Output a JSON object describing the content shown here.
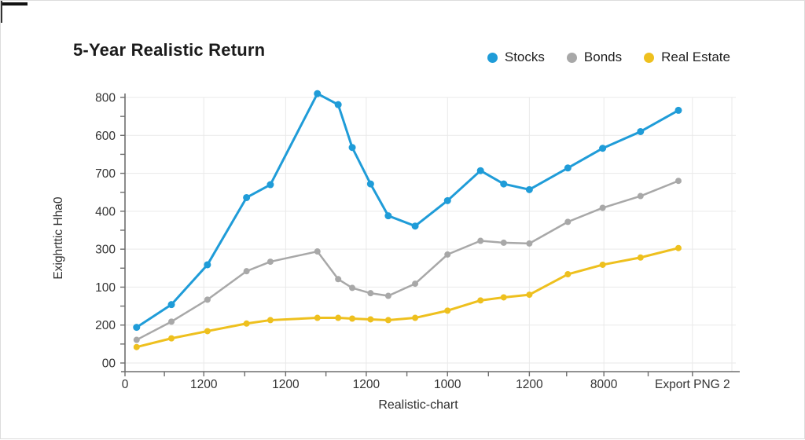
{
  "window": {
    "background": "#ffffff",
    "border_color": "#dcdcdc",
    "corner_mark_color": "#111111"
  },
  "header": {
    "title": "5-Year Realistic Return"
  },
  "legend": {
    "items": [
      {
        "label": "Stocks",
        "color": "#1f9cd8"
      },
      {
        "label": "Bonds",
        "color": "#a8a8a8"
      },
      {
        "label": "Real Estate",
        "color": "#eec01e"
      }
    ]
  },
  "chart_data": {
    "type": "line",
    "title": "5-Year Realistic Return",
    "xlabel": "Realistic-chart",
    "ylabel": "Exighrttic Hha0",
    "grid": true,
    "legend_position": "top-right",
    "axis_color": "#6e6e6e",
    "gridline_color": "#e9e9e9",
    "tick_label_color": "#333333",
    "x_axis": {
      "range": [
        0,
        100
      ],
      "ticks": [
        {
          "pos": 0,
          "label": "0"
        },
        {
          "pos": 12.9,
          "label": "1200"
        },
        {
          "pos": 26.3,
          "label": "1200"
        },
        {
          "pos": 39.5,
          "label": "1200"
        },
        {
          "pos": 52.8,
          "label": "1000"
        },
        {
          "pos": 66.2,
          "label": "1200"
        },
        {
          "pos": 78.4,
          "label": "8000"
        },
        {
          "pos": 92.9,
          "label": "Export PNG 2"
        }
      ]
    },
    "y_axis": {
      "range": [
        0,
        700
      ],
      "tick_step": 100,
      "tick_labels_bottom_to_top": [
        "00",
        "200",
        "100",
        "300",
        "400",
        "700",
        "600",
        "800"
      ]
    },
    "x": [
      1.9,
      7.6,
      13.5,
      19.9,
      23.8,
      31.5,
      34.9,
      37.2,
      40.2,
      43.1,
      47.5,
      52.8,
      58.2,
      62.0,
      66.2,
      72.5,
      78.2,
      84.4,
      90.6
    ],
    "series": [
      {
        "name": "Stocks",
        "color": "#1f9cd8",
        "line_width": 3,
        "marker_radius": 4.5,
        "values": [
          94,
          154,
          259,
          436,
          470,
          710,
          681,
          568,
          472,
          388,
          361,
          428,
          507,
          472,
          457,
          514,
          566,
          610,
          666
        ]
      },
      {
        "name": "Bonds",
        "color": "#a8a8a8",
        "line_width": 2.5,
        "marker_radius": 4,
        "values": [
          61,
          109,
          167,
          242,
          267,
          294,
          221,
          198,
          184,
          177,
          209,
          286,
          322,
          317,
          315,
          372,
          409,
          440,
          480
        ]
      },
      {
        "name": "Real Estate",
        "color": "#eec01e",
        "line_width": 3,
        "marker_radius": 4,
        "values": [
          42,
          65,
          84,
          104,
          113,
          119,
          119,
          117,
          115,
          113,
          119,
          138,
          165,
          173,
          180,
          234,
          259,
          278,
          303
        ]
      }
    ]
  }
}
